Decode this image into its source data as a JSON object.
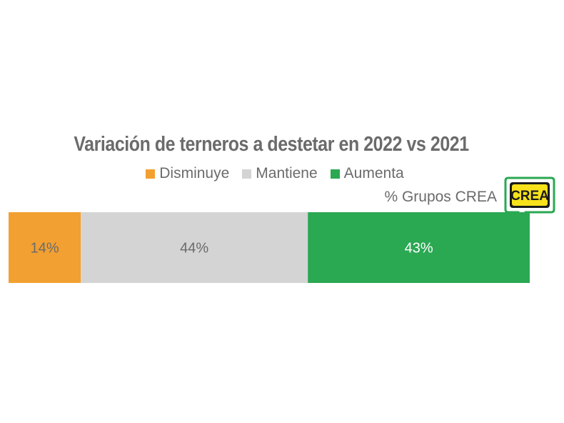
{
  "chart_data": {
    "type": "bar",
    "orientation": "horizontal-stacked",
    "title": "Variación de terneros a destetar en 2022 vs 2021",
    "subtitle": "% Grupos CREA",
    "legend_position": "top",
    "series": [
      {
        "name": "Disminuye",
        "value": 14,
        "label": "14%",
        "color": "#f2a031",
        "label_color": "#6b6b6b"
      },
      {
        "name": "Mantiene",
        "value": 44,
        "label": "44%",
        "color": "#d4d4d4",
        "label_color": "#6b6b6b"
      },
      {
        "name": "Aumenta",
        "value": 43,
        "label": "43%",
        "color": "#2aa852",
        "label_color": "#ffffff"
      }
    ]
  },
  "logo": {
    "text": "CREA",
    "fill": "#f7e21b",
    "frame": "#1b1b1b",
    "border": "#2aa852"
  }
}
